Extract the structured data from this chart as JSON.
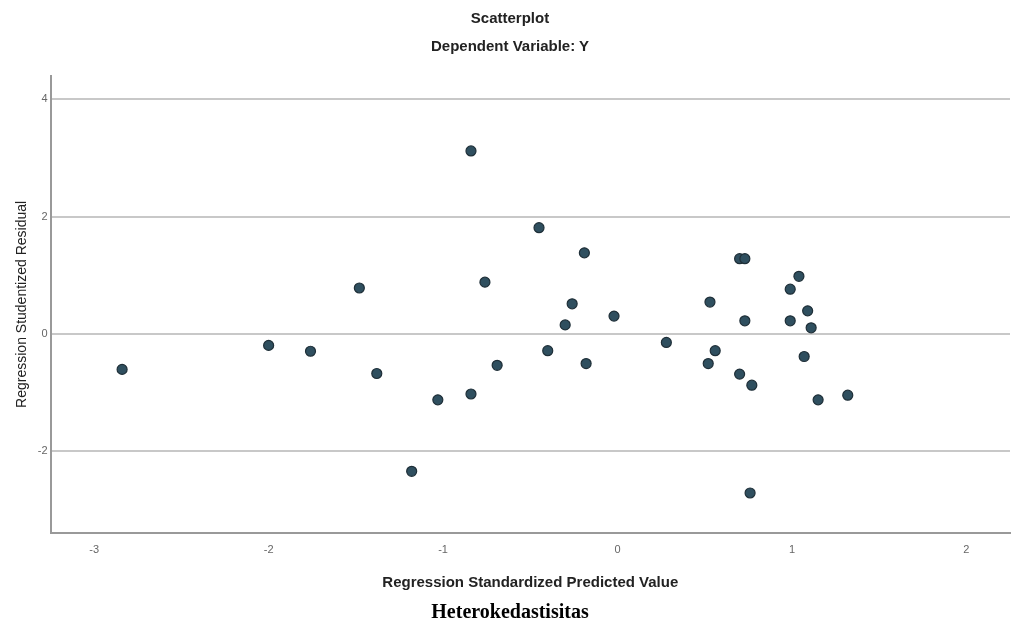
{
  "chart_data": {
    "type": "scatter",
    "title": "Scatterplot",
    "subtitle": "Dependent Variable: Y",
    "xlabel": "Regression Standardized Predicted Value",
    "ylabel": "Regression Studentized Residual",
    "annotations": [
      "Heterokedastisitas"
    ],
    "xlim": [
      -3.25,
      2.25
    ],
    "xticks": [
      -3,
      -2,
      -1,
      0,
      1,
      2
    ],
    "ylim": [
      -3.4,
      4.4
    ],
    "yticks": [
      -2,
      0,
      2,
      4
    ],
    "grid": "y",
    "legend": false,
    "marker": "circle",
    "series": [
      {
        "color": "#2f4f5f",
        "x": [
          -0.84,
          -1.48,
          -0.76,
          -2.0,
          -1.76,
          -0.45,
          -0.19,
          0.7,
          0.73,
          1.04,
          0.99,
          -0.26,
          0.53,
          -0.02,
          -0.3,
          0.73,
          0.99,
          1.09,
          1.11,
          -2.84,
          -1.38,
          -1.18,
          -1.03,
          -0.84,
          -0.69,
          -0.4,
          -0.18,
          0.28,
          0.56,
          0.52,
          0.7,
          0.77,
          1.07,
          1.15,
          1.32,
          0.76
        ],
        "values": [
          3.12,
          0.78,
          0.88,
          -0.2,
          -0.3,
          1.81,
          1.38,
          1.28,
          1.28,
          0.98,
          0.76,
          0.51,
          0.54,
          0.3,
          0.15,
          0.22,
          0.22,
          0.39,
          0.1,
          -0.61,
          -0.68,
          -2.35,
          -1.13,
          -1.03,
          -0.54,
          -0.29,
          -0.51,
          -0.15,
          -0.29,
          -0.51,
          -0.69,
          -0.88,
          -0.39,
          -1.13,
          -1.05,
          -2.72
        ]
      }
    ]
  }
}
